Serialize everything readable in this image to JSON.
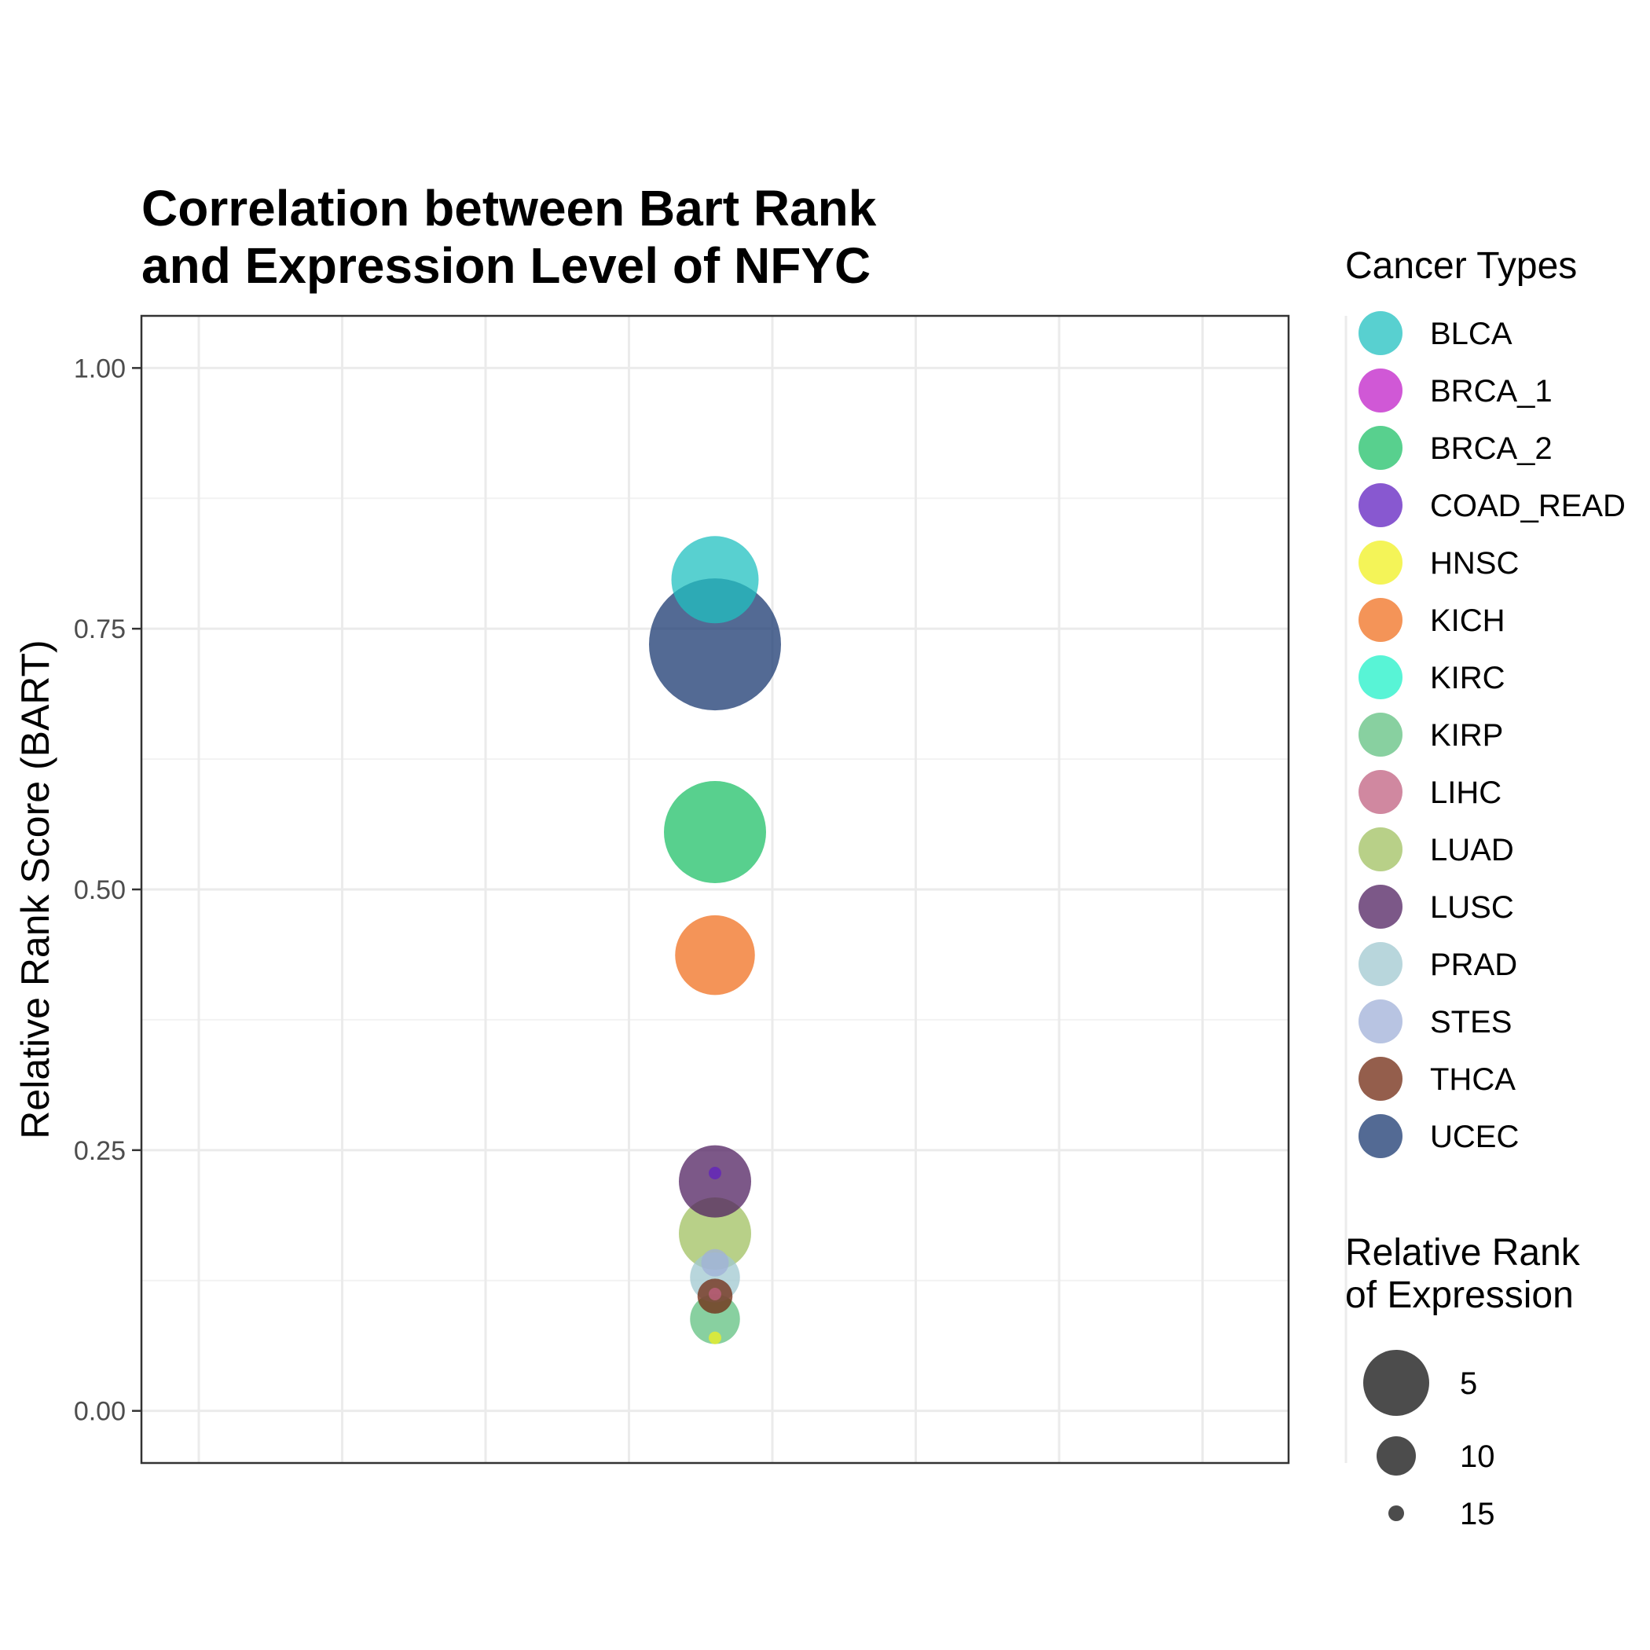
{
  "chart_data": {
    "type": "scatter",
    "title_line1": "Correlation between Bart Rank",
    "title_line2": "and Expression Level of NFYC",
    "xlabel": "",
    "ylabel": "Relative Rank Score (BART)",
    "ylim": [
      -0.05,
      1.05
    ],
    "xlim": [
      0.5,
      1.5
    ],
    "y_ticks": [
      {
        "value": 0.0,
        "label": "0.00"
      },
      {
        "value": 0.25,
        "label": "0.25"
      },
      {
        "value": 0.5,
        "label": "0.50"
      },
      {
        "value": 0.75,
        "label": "0.75"
      },
      {
        "value": 1.0,
        "label": "1.00"
      }
    ],
    "grid": true,
    "legend_position": "right",
    "color_legend_title": "Cancer Types",
    "size_legend_title_line1": "Relative Rank",
    "size_legend_title_line2": "of Expression",
    "size_legend": [
      {
        "label": "5",
        "value": 5
      },
      {
        "label": "10",
        "value": 10
      },
      {
        "label": "15",
        "value": 15
      }
    ],
    "categories": [
      {
        "name": "BLCA",
        "color": "#20C0C0"
      },
      {
        "name": "BRCA_1",
        "color": "#C020C8"
      },
      {
        "name": "BRCA_2",
        "color": "#20C068"
      },
      {
        "name": "COAD_READ",
        "color": "#6020C0"
      },
      {
        "name": "HNSC",
        "color": "#F0F020"
      },
      {
        "name": "KICH",
        "color": "#F07020"
      },
      {
        "name": "KIRC",
        "color": "#20F0C8"
      },
      {
        "name": "KIRP",
        "color": "#60C080"
      },
      {
        "name": "LIHC",
        "color": "#C06080"
      },
      {
        "name": "LUAD",
        "color": "#A0C060"
      },
      {
        "name": "LUSC",
        "color": "#502060"
      },
      {
        "name": "PRAD",
        "color": "#A0C8D0"
      },
      {
        "name": "STES",
        "color": "#A0B0D8"
      },
      {
        "name": "THCA",
        "color": "#702810"
      },
      {
        "name": "UCEC",
        "color": "#1A3870"
      }
    ],
    "points": [
      {
        "category": "KIRP",
        "x": 1,
        "y": 0.088,
        "size": 12
      },
      {
        "category": "HNSC",
        "x": 1,
        "y": 0.07,
        "size": 17
      },
      {
        "category": "PRAD",
        "x": 1,
        "y": 0.128,
        "size": 12
      },
      {
        "category": "STES",
        "x": 1,
        "y": 0.142,
        "size": 15
      },
      {
        "category": "LIHC",
        "x": 1,
        "y": 0.112,
        "size": 17
      },
      {
        "category": "THCA",
        "x": 1,
        "y": 0.11,
        "size": 14
      },
      {
        "category": "LUAD",
        "x": 1,
        "y": 0.17,
        "size": 9
      },
      {
        "category": "LUSC",
        "x": 1,
        "y": 0.22,
        "size": 9
      },
      {
        "category": "COAD_READ",
        "x": 1,
        "y": 0.228,
        "size": 17
      },
      {
        "category": "KICH",
        "x": 1,
        "y": 0.437,
        "size": 8
      },
      {
        "category": "BRCA_2",
        "x": 1,
        "y": 0.555,
        "size": 5
      },
      {
        "category": "BLCA",
        "x": 1,
        "y": 0.797,
        "size": 7
      },
      {
        "category": "UCEC",
        "x": 1,
        "y": 0.735,
        "size": 1
      }
    ]
  }
}
